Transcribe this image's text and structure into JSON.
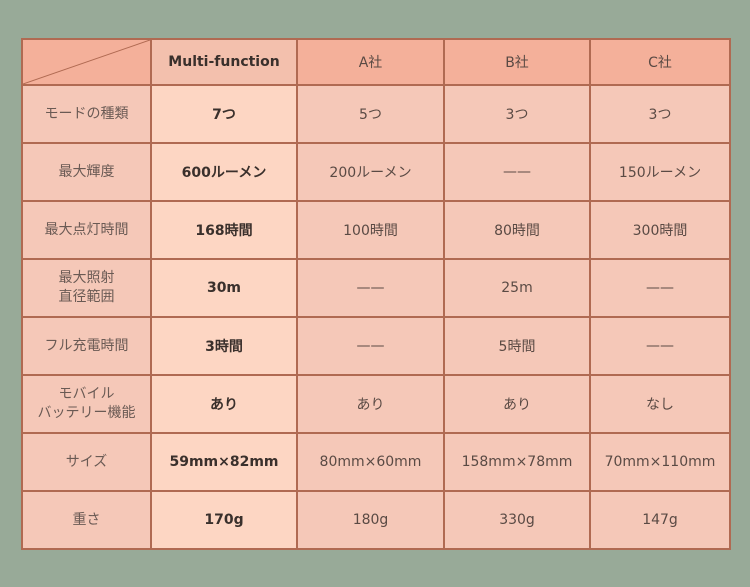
{
  "header": {
    "corner": "",
    "columns": [
      "Multi-function",
      "A社",
      "B社",
      "C社"
    ]
  },
  "rows": [
    {
      "label": "モードの種類",
      "values": [
        "7つ",
        "5つ",
        "3つ",
        "3つ"
      ]
    },
    {
      "label": "最大輝度",
      "values": [
        "600ルーメン",
        "200ルーメン",
        "——",
        "150ルーメン"
      ]
    },
    {
      "label": "最大点灯時間",
      "values": [
        "168時間",
        "100時間",
        "80時間",
        "300時間"
      ]
    },
    {
      "label": "最大照射\n直径範囲",
      "values": [
        "30m",
        "——",
        "25m",
        "——"
      ]
    },
    {
      "label": "フル充電時間",
      "values": [
        "3時間",
        "——",
        "5時間",
        "——"
      ]
    },
    {
      "label": "モバイル\nバッテリー機能",
      "values": [
        "あり",
        "あり",
        "あり",
        "なし"
      ]
    },
    {
      "label": "サイズ",
      "values": [
        "59mm×82mm",
        "80mm×60mm",
        "158mm×78mm",
        "70mm×110mm"
      ]
    },
    {
      "label": "重さ",
      "values": [
        "170g",
        "180g",
        "330g",
        "147g"
      ]
    }
  ],
  "colors": {
    "background": "#98aa98",
    "header": "#f4b09a",
    "cell": "#f5c8b8",
    "highlight": "#fdd6c3",
    "border": "#b06a52"
  }
}
